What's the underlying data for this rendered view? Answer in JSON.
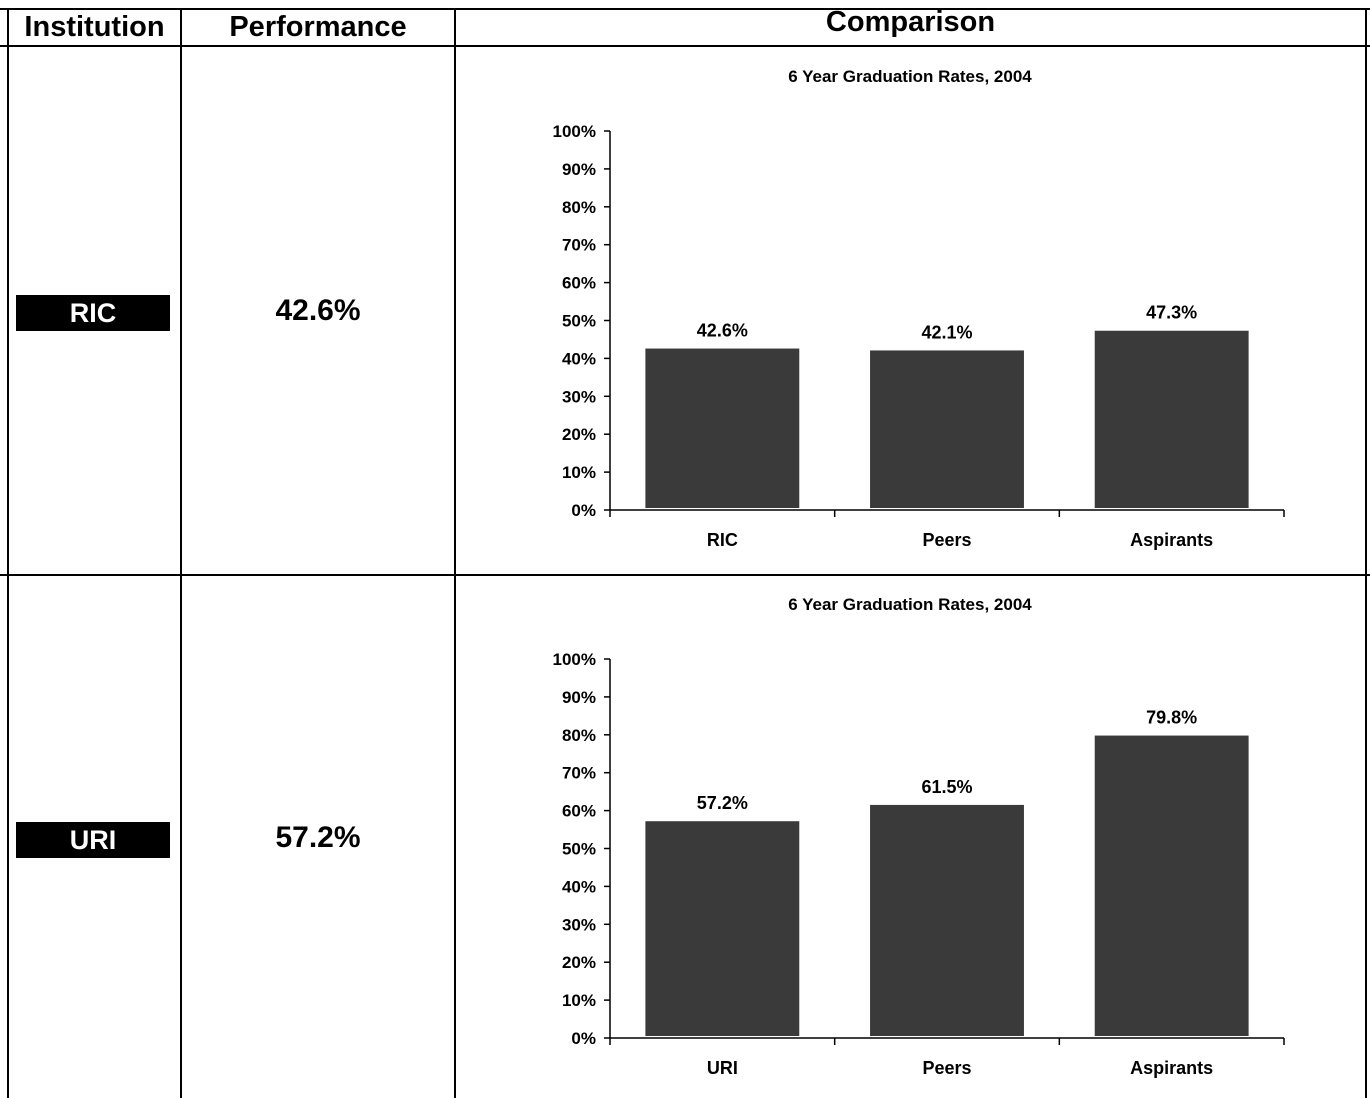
{
  "header": {
    "institution_label": "Institution",
    "performance_label": "Performance",
    "comparison_label": "Comparison"
  },
  "rows": [
    {
      "institution": "RIC",
      "performance": "42.6%"
    },
    {
      "institution": "URI",
      "performance": "57.2%"
    }
  ],
  "colors": {
    "bar": "#3a3a3a",
    "badge": "#000000"
  },
  "chart_data": [
    {
      "type": "bar",
      "title": "6 Year Graduation Rates, 2004",
      "categories": [
        "RIC",
        "Peers",
        "Aspirants"
      ],
      "values": [
        42.6,
        42.1,
        47.3
      ],
      "value_labels": [
        "42.6%",
        "42.1%",
        "47.3%"
      ],
      "ylim": [
        0,
        100
      ],
      "yticks": [
        "0%",
        "10%",
        "20%",
        "30%",
        "40%",
        "50%",
        "60%",
        "70%",
        "80%",
        "90%",
        "100%"
      ],
      "grid": false
    },
    {
      "type": "bar",
      "title": "6 Year Graduation Rates, 2004",
      "categories": [
        "URI",
        "Peers",
        "Aspirants"
      ],
      "values": [
        57.2,
        61.5,
        79.8
      ],
      "value_labels": [
        "57.2%",
        "61.5%",
        "79.8%"
      ],
      "ylim": [
        0,
        100
      ],
      "yticks": [
        "0%",
        "10%",
        "20%",
        "30%",
        "40%",
        "50%",
        "60%",
        "70%",
        "80%",
        "90%",
        "100%"
      ],
      "grid": false
    }
  ]
}
